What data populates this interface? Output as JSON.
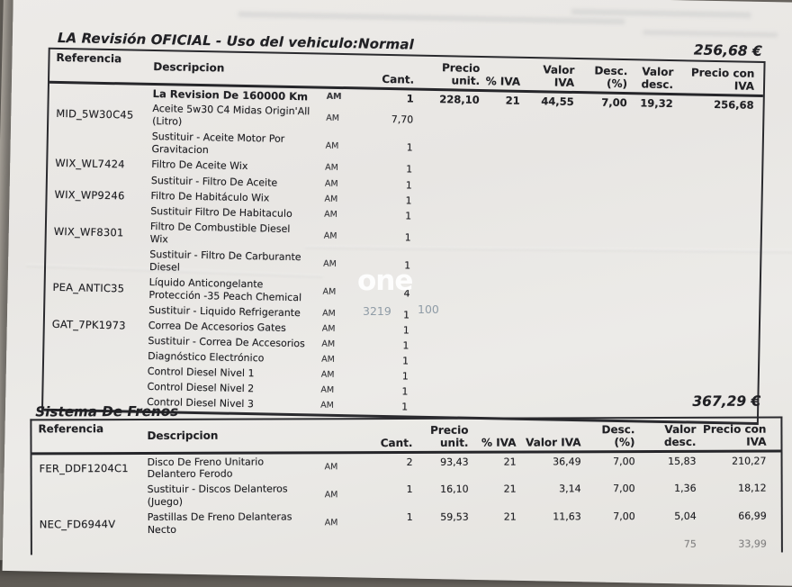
{
  "watermark": {
    "logo_text": "one",
    "left_number": "3219",
    "right_number": "100",
    "logo_color": "#ffffff",
    "number_color": "#8b98a3"
  },
  "sections": [
    {
      "title": "LA Revisión OFICIAL - Uso del vehiculo:Normal",
      "total": "256,68 €",
      "columns": [
        "Referencia",
        "Descripcion",
        "Cant.",
        "Precio\nunit.",
        "% IVA",
        "Valor IVA",
        "Desc.\n(%)",
        "Valor\ndesc.",
        "Precio con\nIVA"
      ],
      "rows": [
        {
          "desc": "La Revision De 160000 Km",
          "am": "AM",
          "cant": "1",
          "unit": "228,10",
          "iva": "21",
          "viva": "44,55",
          "dpct": "7,00",
          "vdesc": "19,32",
          "piva": "256,68",
          "bold": true
        },
        {
          "ref": "MID_5W30C45",
          "desc": "Aceite 5w30 C4 Midas Origin'All\n(Litro)",
          "am": "AM",
          "cant": "7,70"
        },
        {
          "desc": "Sustituir - Aceite Motor Por\nGravitacion",
          "am": "AM",
          "cant": "1"
        },
        {
          "ref": "WIX_WL7424",
          "desc": "Filtro De Aceite Wix",
          "am": "AM",
          "cant": "1"
        },
        {
          "desc": "Sustituir - Filtro De Aceite",
          "am": "AM",
          "cant": "1"
        },
        {
          "ref": "WIX_WP9246",
          "desc": "Filtro De Habitáculo Wix",
          "am": "AM",
          "cant": "1"
        },
        {
          "desc": "Sustituir Filtro De Habitaculo",
          "am": "AM",
          "cant": "1"
        },
        {
          "ref": "WIX_WF8301",
          "desc": "Filtro De Combustible Diesel\nWix",
          "am": "AM",
          "cant": "1"
        },
        {
          "desc": "Sustituir - Filtro De Carburante\nDiesel",
          "am": "AM",
          "cant": "1"
        },
        {
          "ref": "PEA_ANTIC35",
          "desc": "Líquido Anticongelante\nProtección -35 Peach Chemical",
          "am": "AM",
          "cant": "4"
        },
        {
          "desc": "Sustituir - Liquido Refrigerante",
          "am": "AM",
          "cant": "1"
        },
        {
          "ref": "GAT_7PK1973",
          "desc": "Correa De Accesorios Gates",
          "am": "AM",
          "cant": "1"
        },
        {
          "desc": "Sustituir - Correa De Accesorios",
          "am": "AM",
          "cant": "1"
        },
        {
          "desc": "Diagnóstico Electrónico",
          "am": "AM",
          "cant": "1"
        },
        {
          "desc": "Control Diesel Nivel 1",
          "am": "AM",
          "cant": "1"
        },
        {
          "desc": "Control Diesel Nivel 2",
          "am": "AM",
          "cant": "1"
        },
        {
          "desc": "Control Diesel Nivel 3",
          "am": "AM",
          "cant": "1"
        }
      ]
    },
    {
      "title": "Sistema De Frenos",
      "total": "367,29 €",
      "columns": [
        "Referencia",
        "Descripcion",
        "Cant.",
        "Precio\nunit.",
        "% IVA",
        "Valor IVA",
        "Desc.\n(%)",
        "Valor\ndesc.",
        "Precio con\nIVA"
      ],
      "rows": [
        {
          "ref": "FER_DDF1204C1",
          "desc": "Disco De Freno Unitario\nDelantero Ferodo",
          "am": "AM",
          "cant": "2",
          "unit": "93,43",
          "iva": "21",
          "viva": "36,49",
          "dpct": "7,00",
          "vdesc": "15,83",
          "piva": "210,27"
        },
        {
          "desc": "Sustituir - Discos Delanteros\n(Juego)",
          "am": "AM",
          "cant": "1",
          "unit": "16,10",
          "iva": "21",
          "viva": "3,14",
          "dpct": "7,00",
          "vdesc": "1,36",
          "piva": "18,12"
        },
        {
          "ref": "NEC_FD6944V",
          "desc": "Pastillas De Freno Delanteras\nNecto",
          "am": "AM",
          "cant": "1",
          "unit": "59,53",
          "iva": "21",
          "viva": "11,63",
          "dpct": "7,00",
          "vdesc": "5,04",
          "piva": "66,99"
        },
        {
          "vdesc": "75",
          "piva": "33,99",
          "partial": true
        }
      ]
    }
  ]
}
